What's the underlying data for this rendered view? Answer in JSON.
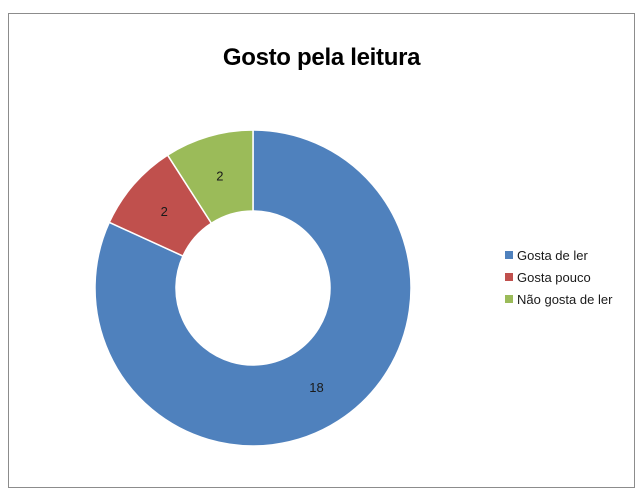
{
  "chart_data": {
    "type": "pie",
    "title": "Gosto pela leitura",
    "categories": [
      "Gosta de ler",
      "Gosta pouco",
      "Não gosta de ler"
    ],
    "values": [
      18,
      2,
      2
    ],
    "colors": [
      "#4f81bd",
      "#c0504d",
      "#9bbb59"
    ],
    "donut": true,
    "data_labels": [
      "18",
      "2",
      "2"
    ],
    "legend_position": "right"
  }
}
